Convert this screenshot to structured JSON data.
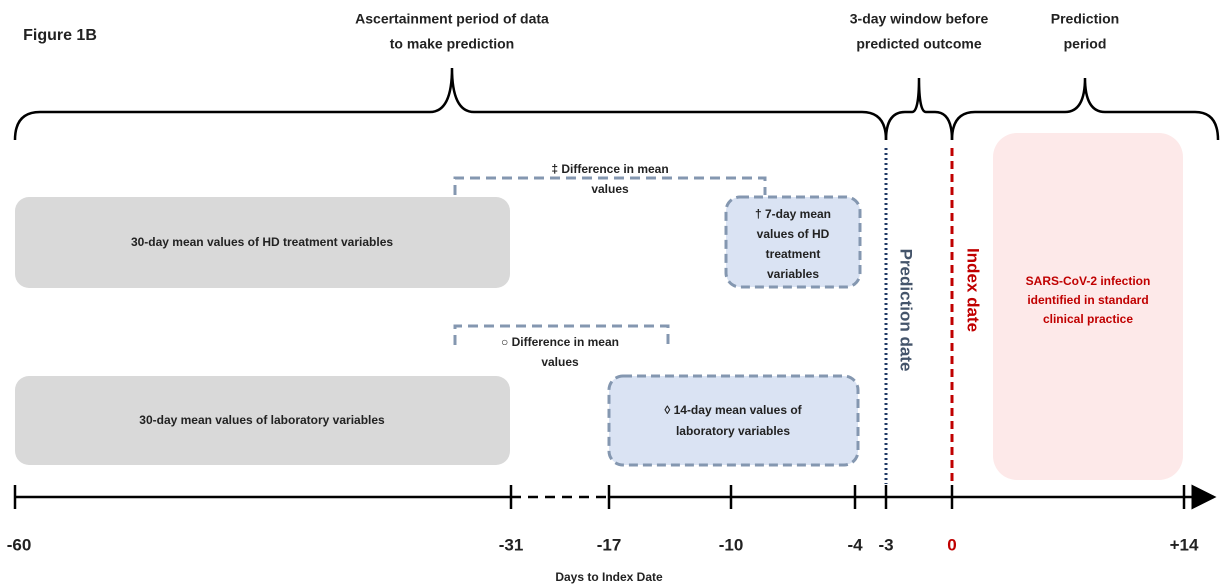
{
  "figure_label": "Figure 1B",
  "periods": [
    {
      "lines": [
        "Ascertainment period of data",
        "to make prediction"
      ]
    },
    {
      "lines": [
        "3-day window before",
        "predicted outcome"
      ]
    },
    {
      "lines": [
        "Prediction",
        "period"
      ]
    }
  ],
  "diff_hd": {
    "lines": [
      "‡ Difference in mean",
      "values"
    ]
  },
  "diff_lab": {
    "lines": [
      "○ Difference in mean",
      "values"
    ]
  },
  "box_hd_30": "30-day mean values of HD treatment variables",
  "box_hd_7": {
    "lines": [
      "† 7-day mean",
      "values of HD",
      "treatment",
      "variables"
    ]
  },
  "box_lab_30": "30-day mean values of laboratory variables",
  "box_lab_14": {
    "lines": [
      "◊ 14-day mean values of",
      "laboratory variables"
    ]
  },
  "prediction_date": "Prediction date",
  "index_date": "Index date",
  "infection": {
    "lines": [
      "SARS-CoV-2 infection",
      "identified in standard",
      "clinical practice"
    ]
  },
  "axis": {
    "ticks": [
      "-60",
      "-31",
      "-17",
      "-10",
      "-4",
      "-3",
      "0",
      "+14"
    ],
    "title": "Days to Index Date"
  }
}
